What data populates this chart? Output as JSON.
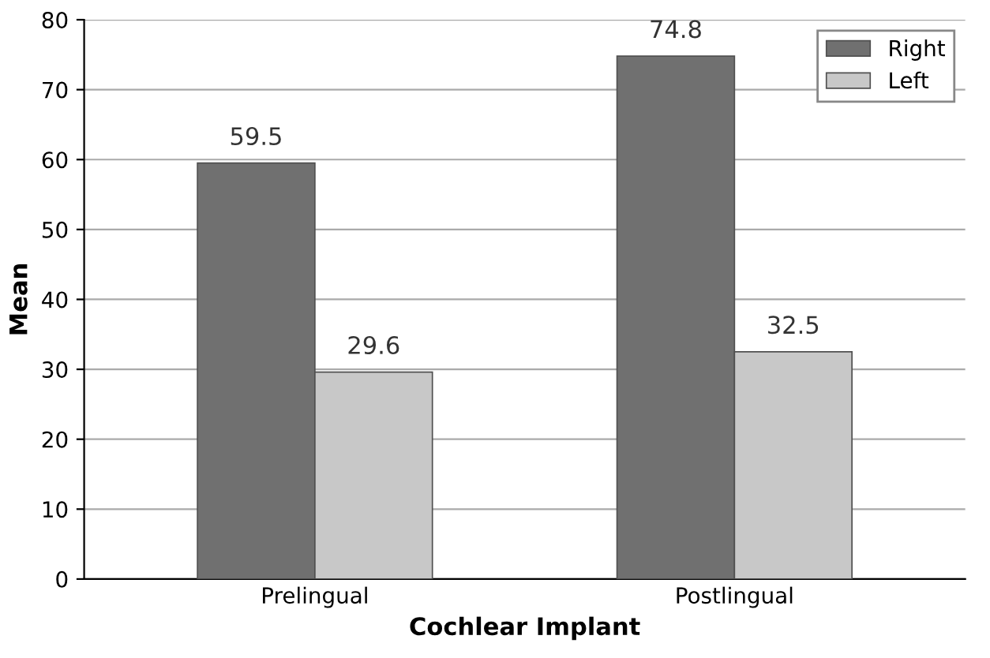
{
  "chart_data": {
    "type": "bar",
    "xlabel": "Cochlear Implant",
    "ylabel": "Mean",
    "categories": [
      "Prelingual",
      "Postlingual"
    ],
    "series": [
      {
        "name": "Right",
        "color": "#707070",
        "values": [
          59.5,
          74.8
        ]
      },
      {
        "name": "Left",
        "color": "#c8c8c8",
        "values": [
          29.6,
          32.5
        ]
      }
    ],
    "ylim": [
      0,
      80
    ],
    "yticks": [
      0,
      10,
      20,
      30,
      40,
      50,
      60,
      70,
      80
    ],
    "grid": "y",
    "legend": "top right",
    "data_labels": true
  }
}
